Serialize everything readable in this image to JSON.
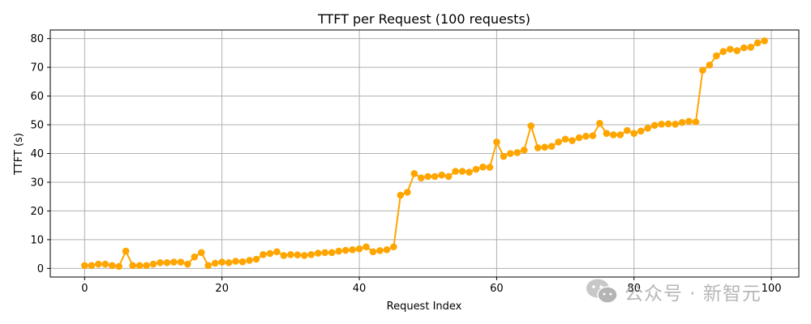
{
  "chart_data": {
    "type": "line",
    "title": "TTFT per Request (100 requests)",
    "xlabel": "Request Index",
    "ylabel": "TTFT (s)",
    "xlim": [
      -5,
      104
    ],
    "ylim": [
      -3,
      83
    ],
    "xticks": [
      0,
      20,
      40,
      60,
      80,
      100
    ],
    "yticks": [
      0,
      10,
      20,
      30,
      40,
      50,
      60,
      70,
      80
    ],
    "grid": true,
    "marker": "circle",
    "color": "#FFA500",
    "series": [
      {
        "x": [
          0,
          1,
          2,
          3,
          4,
          5,
          6,
          7,
          8,
          9,
          10,
          11,
          12,
          13,
          14,
          15,
          16,
          17,
          18,
          19,
          20,
          21,
          22,
          23,
          24,
          25,
          26,
          27,
          28,
          29,
          30,
          31,
          32,
          33,
          34,
          35,
          36,
          37,
          38,
          39,
          40,
          41,
          42,
          43,
          44,
          45,
          46,
          47,
          48,
          49,
          50,
          51,
          52,
          53,
          54,
          55,
          56,
          57,
          58,
          59,
          60,
          61,
          62,
          63,
          64,
          65,
          66,
          67,
          68,
          69,
          70,
          71,
          72,
          73,
          74,
          75,
          76,
          77,
          78,
          79,
          80,
          81,
          82,
          83,
          84,
          85,
          86,
          87,
          88,
          89,
          90,
          91,
          92,
          93,
          94,
          95,
          96,
          97,
          98,
          99
        ],
        "y": [
          1.0,
          1.0,
          1.5,
          1.5,
          1.0,
          0.7,
          6.0,
          1.0,
          1.0,
          1.0,
          1.5,
          2.0,
          2.0,
          2.2,
          2.2,
          1.5,
          4.0,
          5.5,
          1.0,
          1.8,
          2.2,
          2.0,
          2.5,
          2.3,
          2.8,
          3.2,
          4.8,
          5.2,
          5.8,
          4.5,
          4.8,
          4.7,
          4.5,
          4.8,
          5.3,
          5.5,
          5.5,
          6.0,
          6.3,
          6.5,
          6.8,
          7.5,
          5.8,
          6.2,
          6.5,
          7.5,
          25.5,
          26.5,
          33.0,
          31.5,
          32.0,
          32.0,
          32.5,
          32.0,
          33.8,
          33.8,
          33.5,
          34.5,
          35.3,
          35.2,
          44.0,
          39.0,
          40.0,
          40.3,
          41.2,
          49.6,
          42.0,
          42.2,
          42.5,
          44.0,
          45.0,
          44.5,
          45.5,
          46.0,
          46.2,
          50.5,
          47.0,
          46.5,
          46.5,
          48.0,
          47.0,
          47.8,
          48.8,
          49.8,
          50.2,
          50.3,
          50.2,
          50.8,
          51.2,
          51.0,
          69.0,
          70.8,
          74.0,
          75.5,
          76.3,
          75.8,
          76.8,
          77.0,
          78.5,
          79.2
        ]
      }
    ]
  },
  "watermark": {
    "icon": "wechat-icon",
    "text": "公众号 · 新智元"
  }
}
